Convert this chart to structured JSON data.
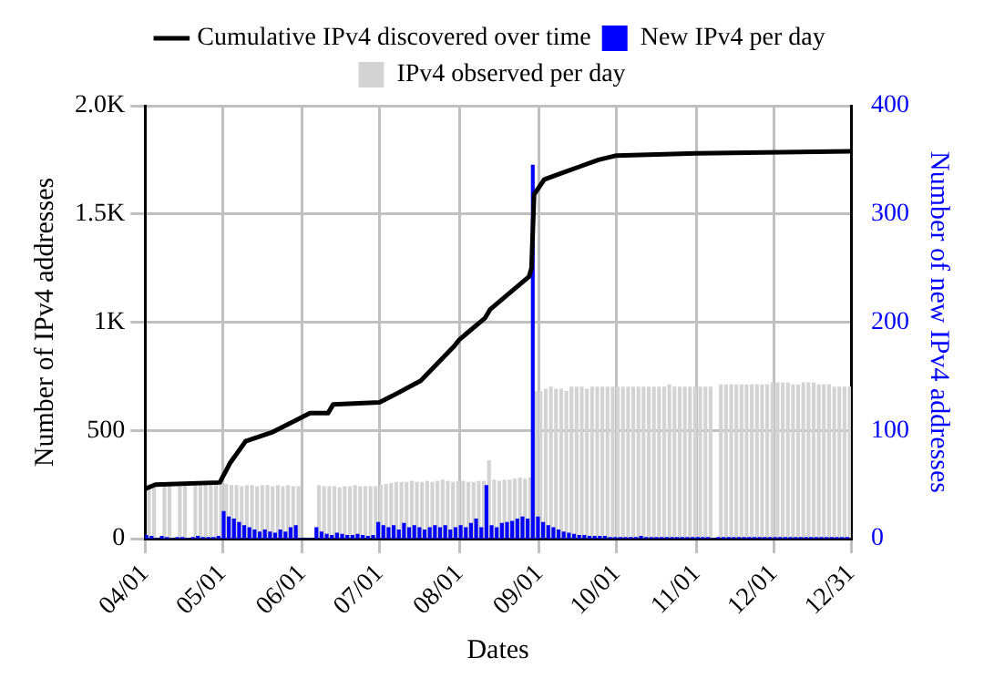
{
  "chart_data": {
    "type": "bar",
    "xlabel": "Dates",
    "ylabel": "Number of IPv4 addresses",
    "y2label": "Number of new IPv4 addresses",
    "x": [
      "--04-02",
      "--04-04",
      "--04-06",
      "--04-08",
      "--04-10",
      "--04-12",
      "--04-14",
      "--04-16",
      "--04-18",
      "--04-20",
      "--04-22",
      "--04-24",
      "--04-26",
      "--04-28",
      "--04-30",
      "--05-02",
      "--05-04",
      "--05-06",
      "--05-08",
      "--05-10",
      "--05-12",
      "--05-14",
      "--05-16",
      "--05-18",
      "--05-20",
      "--05-22",
      "--05-24",
      "--05-26",
      "--05-28",
      "--05-30",
      "--06-01",
      "--06-03",
      "--06-05",
      "--06-07",
      "--06-09",
      "--06-11",
      "--06-13",
      "--06-15",
      "--06-17",
      "--06-19",
      "--06-21",
      "--06-23",
      "--06-25",
      "--06-27",
      "--06-29",
      "--07-01",
      "--07-03",
      "--07-05",
      "--07-07",
      "--07-09",
      "--07-11",
      "--07-13",
      "--07-15",
      "--07-17",
      "--07-19",
      "--07-21",
      "--07-23",
      "--07-25",
      "--07-27",
      "--07-29",
      "--07-31",
      "--08-02",
      "--08-04",
      "--08-06",
      "--08-08",
      "--08-10",
      "--08-12",
      "--08-14",
      "--08-16",
      "--08-18",
      "--08-20",
      "--08-22",
      "--08-24",
      "--08-26",
      "--08-28",
      "--08-30",
      "--09-01",
      "--09-03",
      "--09-05",
      "--09-07",
      "--09-09",
      "--09-11",
      "--09-13",
      "--09-15",
      "--09-17",
      "--09-19",
      "--09-21",
      "--09-23",
      "--09-25",
      "--09-27",
      "--09-29",
      "--10-01",
      "--10-03",
      "--10-05",
      "--10-07",
      "--10-09",
      "--10-11",
      "--10-13",
      "--10-15",
      "--10-17",
      "--10-19",
      "--10-21",
      "--10-23",
      "--10-25",
      "--10-27",
      "--10-29",
      "--10-31",
      "--11-02",
      "--11-04",
      "--11-06",
      "--11-08",
      "--11-10",
      "--11-12",
      "--11-14",
      "--11-16",
      "--11-18",
      "--11-20",
      "--11-22",
      "--11-24",
      "--11-26",
      "--11-28",
      "--11-30",
      "--12-02",
      "--12-04",
      "--12-06",
      "--12-08",
      "--12-10",
      "--12-12",
      "--12-14",
      "--12-16",
      "--12-18",
      "--12-20",
      "--12-22",
      "--12-24",
      "--12-26",
      "--12-28",
      "--12-30"
    ],
    "series": [
      {
        "name": "Cumulative IPv4 discovered over time",
        "type": "line",
        "axis": "y",
        "color": "#000000",
        "x": [
          "--04-01",
          "--04-05",
          "--04-30",
          "--05-04",
          "--05-10",
          "--05-20",
          "--05-30",
          "--06-04",
          "--06-11",
          "--06-13",
          "--07-01",
          "--07-06",
          "--07-17",
          "--07-30",
          "--08-01",
          "--08-11",
          "--08-13",
          "--08-20",
          "--08-28",
          "--08-29",
          "--08-30",
          "--09-03",
          "--09-10",
          "--09-17",
          "--09-24",
          "--10-01",
          "--11-01",
          "--12-31"
        ],
        "values": [
          230,
          250,
          260,
          350,
          450,
          490,
          550,
          580,
          580,
          620,
          630,
          660,
          730,
          890,
          920,
          1020,
          1060,
          1130,
          1210,
          1250,
          1590,
          1660,
          1690,
          1720,
          1750,
          1770,
          1780,
          1790
        ]
      },
      {
        "name": "IPv4 observed per day",
        "axis": "y",
        "color": "#d3d3d3",
        "values": [
          250,
          250,
          null,
          250,
          250,
          null,
          250,
          250,
          null,
          250,
          250,
          250,
          250,
          250,
          250,
          250,
          245,
          245,
          240,
          245,
          245,
          240,
          245,
          245,
          240,
          245,
          240,
          245,
          240,
          240,
          null,
          null,
          null,
          245,
          240,
          240,
          240,
          235,
          240,
          240,
          245,
          240,
          240,
          240,
          240,
          245,
          250,
          255,
          260,
          260,
          260,
          265,
          260,
          260,
          265,
          260,
          265,
          270,
          265,
          260,
          265,
          265,
          260,
          260,
          265,
          265,
          360,
          270,
          265,
          270,
          270,
          275,
          280,
          275,
          280,
          680,
          680,
          690,
          700,
          690,
          690,
          680,
          700,
          700,
          700,
          690,
          700,
          700,
          700,
          700,
          700,
          700,
          700,
          700,
          700,
          700,
          700,
          700,
          700,
          700,
          700,
          710,
          700,
          700,
          700,
          700,
          700,
          700,
          700,
          700,
          null,
          710,
          710,
          710,
          710,
          710,
          710,
          710,
          710,
          710,
          710,
          720,
          720,
          720,
          720,
          710,
          710,
          720,
          720,
          720,
          710,
          710,
          710,
          700,
          700,
          700,
          700
        ]
      },
      {
        "name": "New IPv4 per day",
        "axis": "y2",
        "color": "#0000ff",
        "values": [
          3,
          2,
          0,
          2,
          1,
          0,
          1,
          1,
          0,
          1,
          2,
          1,
          1,
          1,
          2,
          25,
          20,
          18,
          15,
          12,
          10,
          8,
          6,
          8,
          6,
          5,
          8,
          6,
          10,
          12,
          0,
          0,
          0,
          10,
          6,
          4,
          3,
          5,
          4,
          3,
          3,
          4,
          3,
          2,
          3,
          15,
          12,
          10,
          12,
          8,
          14,
          10,
          12,
          10,
          8,
          10,
          12,
          10,
          12,
          8,
          10,
          12,
          10,
          14,
          18,
          10,
          49,
          12,
          10,
          14,
          15,
          16,
          18,
          20,
          18,
          345,
          20,
          15,
          12,
          10,
          8,
          6,
          5,
          4,
          3,
          3,
          2,
          2,
          2,
          2,
          1,
          1,
          1,
          1,
          1,
          1,
          2,
          1,
          1,
          1,
          1,
          1,
          1,
          1,
          1,
          1,
          1,
          1,
          1,
          1,
          0,
          1,
          1,
          1,
          1,
          1,
          1,
          1,
          1,
          1,
          1,
          1,
          1,
          1,
          1,
          1,
          1,
          1,
          1,
          1,
          1,
          1,
          1,
          1,
          1,
          1,
          1
        ]
      }
    ],
    "xlim": [
      "--04-01",
      "--12-31"
    ],
    "xticks": [
      {
        "value": "--04-01",
        "label": "04/01"
      },
      {
        "value": "--05-01",
        "label": "05/01"
      },
      {
        "value": "--06-01",
        "label": "06/01"
      },
      {
        "value": "--07-01",
        "label": "07/01"
      },
      {
        "value": "--08-01",
        "label": "08/01"
      },
      {
        "value": "--09-01",
        "label": "09/01"
      },
      {
        "value": "--10-01",
        "label": "10/01"
      },
      {
        "value": "--11-01",
        "label": "11/01"
      },
      {
        "value": "--12-01",
        "label": "12/01"
      },
      {
        "value": "--12-31",
        "label": "12/31"
      }
    ],
    "ylim": [
      0,
      2000
    ],
    "yticks": [
      0,
      500,
      {
        "value": 1000,
        "label": "1K"
      },
      {
        "value": 1500,
        "label": "1.5K"
      },
      {
        "value": 2000,
        "label": "2.0K"
      }
    ],
    "y2lim": [
      0,
      400
    ],
    "y2ticks": [
      0,
      100,
      200,
      300,
      400
    ],
    "grid": true,
    "legend": "top",
    "marker": "none",
    "line_style": "solid"
  }
}
